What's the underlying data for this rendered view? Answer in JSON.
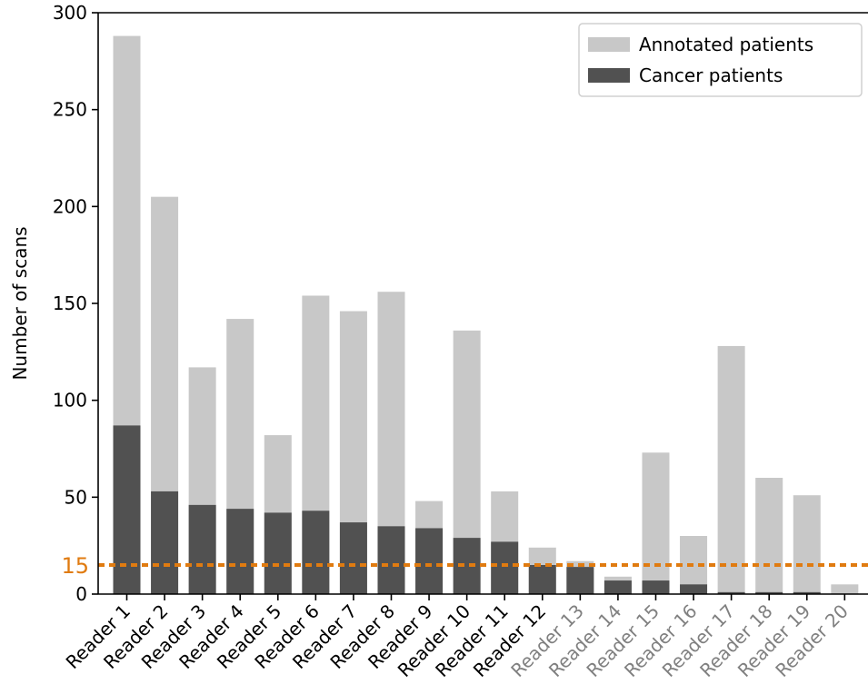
{
  "chart_data": {
    "type": "bar",
    "stacked": false,
    "overlaid": true,
    "categories": [
      "Reader 1",
      "Reader 2",
      "Reader 3",
      "Reader 4",
      "Reader 5",
      "Reader 6",
      "Reader 7",
      "Reader 8",
      "Reader 9",
      "Reader 10",
      "Reader 11",
      "Reader 12",
      "Reader 13",
      "Reader 14",
      "Reader 15",
      "Reader 16",
      "Reader 17",
      "Reader 18",
      "Reader 19",
      "Reader 20"
    ],
    "category_label_colors": [
      "#000000",
      "#000000",
      "#000000",
      "#000000",
      "#000000",
      "#000000",
      "#000000",
      "#000000",
      "#000000",
      "#000000",
      "#000000",
      "#000000",
      "#808080",
      "#808080",
      "#808080",
      "#808080",
      "#808080",
      "#808080",
      "#808080",
      "#808080"
    ],
    "series": [
      {
        "name": "Annotated patients",
        "color": "#c8c8c8",
        "values": [
          288,
          205,
          117,
          142,
          82,
          154,
          146,
          156,
          48,
          136,
          53,
          24,
          17,
          9,
          73,
          30,
          128,
          60,
          51,
          5
        ]
      },
      {
        "name": "Cancer patients",
        "color": "#515151",
        "values": [
          87,
          53,
          46,
          44,
          42,
          43,
          37,
          35,
          34,
          29,
          27,
          15,
          14,
          7,
          7,
          5,
          1,
          1,
          1,
          0
        ]
      }
    ],
    "xlabel": "",
    "ylabel": "Number of scans",
    "ylim": [
      0,
      300
    ],
    "yticks": [
      0,
      50,
      100,
      150,
      200,
      250,
      300
    ],
    "grid": false,
    "legend_position": "top-right",
    "threshold": {
      "value": 15,
      "label": "15",
      "color": "#e07b10",
      "style": "dotted"
    }
  }
}
